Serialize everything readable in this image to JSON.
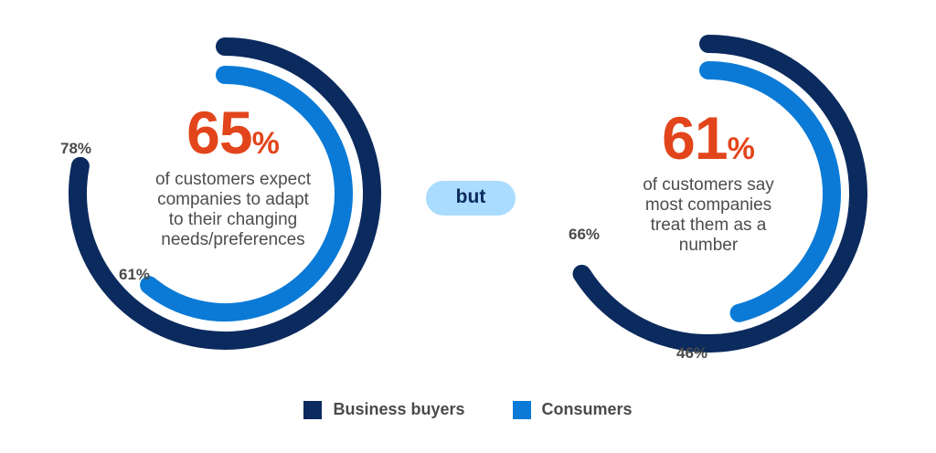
{
  "colors": {
    "business": "#0b2a5e",
    "consumer": "#0a7ad6",
    "highlight": "#e2451b",
    "pill": "#a9dcff"
  },
  "left": {
    "big_value": "65",
    "big_unit": "%",
    "lines": [
      "of customers expect",
      "companies to adapt",
      "to their changing",
      "needs/preferences"
    ]
  },
  "middle": {
    "label": "but"
  },
  "right": {
    "big_value": "61",
    "big_unit": "%",
    "lines": [
      "of customers say",
      "most companies",
      "treat them as a",
      "number"
    ]
  },
  "legend": [
    {
      "label": "Business buyers",
      "color": "#0b2a5e"
    },
    {
      "label": "Consumers",
      "color": "#0a7ad6"
    }
  ],
  "chart_data": [
    {
      "type": "radial-bar",
      "series": [
        {
          "name": "Business buyers",
          "value": 78,
          "label": "78%"
        },
        {
          "name": "Consumers",
          "value": 61,
          "label": "61%"
        }
      ]
    },
    {
      "type": "radial-bar",
      "series": [
        {
          "name": "Business buyers",
          "value": 66,
          "label": "66%"
        },
        {
          "name": "Consumers",
          "value": 46,
          "label": "46%"
        }
      ]
    }
  ]
}
